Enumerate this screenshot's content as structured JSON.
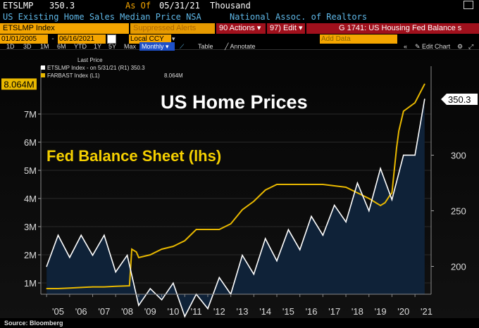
{
  "header": {
    "ticker": "ETSLMP",
    "last_value": "350.3",
    "as_of": "As Of",
    "as_of_date": "05/31/21",
    "units": "Thousand",
    "description": "US Existing Home Sales Median Price NSA",
    "source": "National Assoc. of Realtors",
    "icon": "window-icon"
  },
  "toolbar": {
    "index_field": "ETSLMP Index",
    "suppressed": "Suppressed Alerts",
    "actions": "90 Actions",
    "edit": "97) Edit",
    "chart_name": "G 1741: US Housing Fed Balance s",
    "date_from": "01/01/2005",
    "date_to": "06/16/2021",
    "currency": "Local CCY",
    "ranges": [
      "1D",
      "3D",
      "1M",
      "6M",
      "YTD",
      "1Y",
      "5Y",
      "Max"
    ],
    "period": "Monthly",
    "table": "Table",
    "annotate": "Annotate",
    "add_data": "Add Data",
    "edit_chart": "Edit Chart"
  },
  "legend": {
    "title": "Last Price",
    "line1": "ETSLMP Index - on 5/31/21 (R1) 350.3",
    "line2": "FARBAST Index (L1)",
    "line2_value": "8.064M"
  },
  "annotations": {
    "title": "US Home Prices",
    "subtitle": "Fed Balance Sheet (lhs)"
  },
  "source_note": "Source: Bloomberg",
  "colors": {
    "home": "#ffffff",
    "fed": "#e8b800",
    "area": "#0f2238",
    "axis_label": "#dddddd",
    "orange": "#f4a500",
    "red": "#b01020"
  },
  "chart_data": {
    "type": "line",
    "x_tick_labels": [
      "'05",
      "'06",
      "'07",
      "'08",
      "'09",
      "'10",
      "'11",
      "'12",
      "'13",
      "'14",
      "'15",
      "'16",
      "'17",
      "'18",
      "'19",
      "'20",
      "'21"
    ],
    "left_axis": {
      "label": "",
      "ticks": [
        "1M",
        "2M",
        "3M",
        "4M",
        "5M",
        "6M",
        "7M"
      ],
      "ylim": [
        0.6,
        8.7
      ]
    },
    "right_axis": {
      "label": "",
      "ticks": [
        "200",
        "250",
        "300"
      ],
      "ylim": [
        175,
        380
      ]
    },
    "last_value_labels": {
      "left": "8.064M",
      "right": "350.3"
    },
    "series": [
      {
        "name": "ETSLMP Index",
        "axis": "right",
        "style": "area",
        "x": [
          2005.0,
          2005.5,
          2006.0,
          2006.5,
          2007.0,
          2007.5,
          2008.0,
          2008.5,
          2009.0,
          2009.5,
          2010.0,
          2010.5,
          2011.0,
          2011.5,
          2012.0,
          2012.5,
          2013.0,
          2013.5,
          2014.0,
          2014.5,
          2015.0,
          2015.5,
          2016.0,
          2016.5,
          2017.0,
          2017.5,
          2018.0,
          2018.5,
          2019.0,
          2019.5,
          2020.0,
          2020.5,
          2021.0,
          2021.42
        ],
        "values": [
          200,
          228,
          208,
          228,
          210,
          228,
          195,
          210,
          165,
          180,
          170,
          185,
          155,
          175,
          162,
          190,
          175,
          210,
          193,
          225,
          205,
          233,
          215,
          245,
          228,
          255,
          240,
          275,
          250,
          288,
          260,
          300,
          300,
          350.3
        ]
      },
      {
        "name": "FARBAST Index",
        "axis": "left",
        "style": "line",
        "x": [
          2005.0,
          2005.5,
          2006.0,
          2006.5,
          2007.0,
          2007.5,
          2008.0,
          2008.6,
          2008.7,
          2008.9,
          2009.0,
          2009.5,
          2010.0,
          2010.5,
          2011.0,
          2011.5,
          2012.0,
          2012.5,
          2013.0,
          2013.5,
          2014.0,
          2014.5,
          2015.0,
          2015.5,
          2016.0,
          2016.5,
          2017.0,
          2017.5,
          2018.0,
          2018.5,
          2019.0,
          2019.5,
          2019.7,
          2019.9,
          2020.0,
          2020.2,
          2020.3,
          2020.5,
          2021.0,
          2021.42
        ],
        "values": [
          0.8,
          0.8,
          0.82,
          0.84,
          0.86,
          0.86,
          0.88,
          0.9,
          2.2,
          2.1,
          1.9,
          2.0,
          2.2,
          2.3,
          2.5,
          2.9,
          2.9,
          2.9,
          3.1,
          3.6,
          3.9,
          4.3,
          4.5,
          4.5,
          4.5,
          4.5,
          4.5,
          4.45,
          4.4,
          4.2,
          4.0,
          3.75,
          3.85,
          4.1,
          4.2,
          5.8,
          6.4,
          7.1,
          7.4,
          8.064
        ]
      }
    ]
  }
}
